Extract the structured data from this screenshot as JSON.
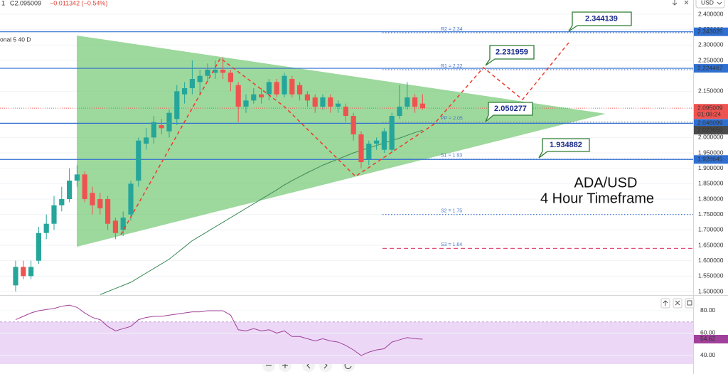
{
  "chart_data": {
    "type": "candlestick",
    "header": [
      "1",
      "C2.095009",
      "−0.011342 (−0.54%)"
    ],
    "indicator_label": "onal 5 40 D",
    "currency": "USD",
    "title": "ADA/USD",
    "subtitle": "4 Hour Timeframe",
    "up_color": "#26a69a",
    "down_color": "#ef5350",
    "ylim": [
      1.4885,
      2.4462
    ],
    "yticks": [
      {
        "value": 2.4,
        "label": "2.400000"
      },
      {
        "value": 2.35,
        "label": "2.350000"
      },
      {
        "value": 2.3,
        "label": "2.300000"
      },
      {
        "value": 2.25,
        "label": "2.250000"
      },
      {
        "value": 2.15,
        "label": "2.150000"
      },
      {
        "value": 2.0,
        "label": "2.000000"
      },
      {
        "value": 1.95,
        "label": "1.950000"
      },
      {
        "value": 1.9,
        "label": "1.900000"
      },
      {
        "value": 1.85,
        "label": "1.850000"
      },
      {
        "value": 1.8,
        "label": "1.800000"
      },
      {
        "value": 1.75,
        "label": "1.750000"
      },
      {
        "value": 1.7,
        "label": "1.700000"
      },
      {
        "value": 1.65,
        "label": "1.650000"
      },
      {
        "value": 1.6,
        "label": "1.600000"
      },
      {
        "value": 1.55,
        "label": "1.550000"
      },
      {
        "value": 1.5,
        "label": "1.500000"
      }
    ],
    "grid": true,
    "open": [
      1.52,
      1.58,
      1.55,
      1.6,
      1.69,
      1.72,
      1.78,
      1.8,
      1.86,
      1.88,
      1.82,
      1.8,
      1.8,
      1.73,
      1.7,
      1.75,
      1.86,
      1.98,
      2.0,
      2.04,
      2.02,
      2.06,
      2.14,
      2.16,
      2.18,
      2.2,
      2.21,
      2.22,
      2.21,
      2.17,
      2.1,
      2.12,
      2.14,
      2.14,
      2.18,
      2.14,
      2.19,
      2.17,
      2.14,
      2.13,
      2.1,
      2.13,
      2.1,
      2.1,
      2.07,
      2.01,
      1.93,
      1.98,
      1.96,
      1.96,
      2.07,
      2.1,
      2.13,
      2.11
    ],
    "high": [
      1.6,
      1.6,
      1.6,
      1.71,
      1.75,
      1.81,
      1.84,
      1.9,
      1.91,
      1.89,
      1.84,
      1.82,
      1.81,
      1.74,
      1.76,
      1.86,
      2.0,
      2.03,
      2.07,
      2.06,
      2.09,
      2.17,
      2.18,
      2.25,
      2.22,
      2.24,
      2.25,
      2.26,
      2.22,
      2.18,
      2.14,
      2.16,
      2.16,
      2.19,
      2.19,
      2.21,
      2.2,
      2.18,
      2.15,
      2.14,
      2.14,
      2.14,
      2.12,
      2.11,
      2.08,
      2.02,
      1.99,
      2.0,
      2.03,
      2.08,
      2.17,
      2.18,
      2.14,
      2.14
    ],
    "low": [
      1.5,
      1.54,
      1.54,
      1.59,
      1.67,
      1.7,
      1.76,
      1.79,
      1.84,
      1.79,
      1.75,
      1.75,
      1.7,
      1.67,
      1.68,
      1.73,
      1.84,
      1.96,
      1.98,
      2.01,
      2.0,
      2.04,
      2.11,
      2.14,
      2.14,
      2.18,
      2.19,
      2.19,
      2.15,
      2.05,
      2.08,
      2.11,
      2.11,
      2.12,
      2.13,
      2.13,
      2.13,
      2.12,
      2.1,
      2.08,
      2.09,
      2.08,
      2.08,
      2.05,
      1.99,
      1.9,
      1.91,
      1.96,
      1.95,
      1.95,
      2.06,
      2.09,
      2.08,
      2.09
    ],
    "close": [
      1.58,
      1.55,
      1.58,
      1.69,
      1.72,
      1.78,
      1.8,
      1.86,
      1.88,
      1.8,
      1.78,
      1.77,
      1.72,
      1.69,
      1.74,
      1.85,
      1.99,
      2.0,
      2.05,
      2.03,
      2.08,
      2.15,
      2.16,
      2.19,
      2.2,
      2.22,
      2.22,
      2.21,
      2.18,
      2.1,
      2.12,
      2.14,
      2.13,
      2.18,
      2.14,
      2.2,
      2.14,
      2.14,
      2.12,
      2.1,
      2.13,
      2.1,
      2.11,
      2.07,
      2.01,
      1.92,
      1.98,
      1.99,
      2.02,
      2.07,
      2.1,
      2.13,
      2.1,
      2.095009
    ],
    "ma": {
      "color": "#3d8b5a",
      "values": [
        null,
        null,
        null,
        null,
        null,
        null,
        null,
        null,
        null,
        null,
        null,
        1.49,
        1.5,
        1.51,
        1.52,
        1.53,
        1.545,
        1.56,
        1.575,
        1.59,
        1.605,
        1.625,
        1.645,
        1.665,
        1.68,
        1.695,
        1.71,
        1.725,
        1.74,
        1.755,
        1.77,
        1.785,
        1.8,
        1.815,
        1.83,
        1.846,
        1.86,
        1.873,
        1.886,
        1.898,
        1.91,
        1.92,
        1.93,
        1.94,
        1.95,
        1.958,
        1.966,
        1.974,
        1.982,
        1.99,
        1.998,
        2.007,
        2.016,
        2.023659
      ]
    },
    "countdown": "01:08:24",
    "levels": [
      {
        "value": 2.343025,
        "color": "#2f6fd0"
      },
      {
        "value": 2.224467,
        "color": "#2f6fd0"
      },
      {
        "value": 2.046099,
        "color": "#2f6fd0"
      },
      {
        "value": 1.928645,
        "color": "#2f6fd0"
      }
    ],
    "pivots": [
      {
        "label": "R2 = 2.34",
        "value": 2.34,
        "color": "#4a78c8"
      },
      {
        "label": "R1 = 2.22",
        "value": 2.22,
        "color": "#4a78c8"
      },
      {
        "label": "PP = 2.05",
        "value": 2.05,
        "color": "#888888"
      },
      {
        "label": "S1 = 1.93",
        "value": 1.93,
        "color": "#4a78c8"
      },
      {
        "label": "S2 = 1.75",
        "value": 1.75,
        "color": "#3a6fd0"
      },
      {
        "label": "S3 = 1.64",
        "value": 1.64,
        "color": "#e0507a"
      }
    ],
    "annotations": [
      2.344139,
      2.231959,
      2.050277,
      1.934882
    ],
    "rsi": {
      "color": "#a0409a",
      "band": [
        30,
        70
      ],
      "band_color": "#ecd8f6",
      "ylim": [
        32.38,
        92.06
      ],
      "yticks": [
        {
          "value": 80,
          "label": "80.00"
        },
        {
          "value": 60,
          "label": "60.00"
        },
        {
          "value": 40,
          "label": "40.00"
        }
      ],
      "values": [
        72,
        75,
        78,
        80,
        81,
        82,
        84,
        85,
        83,
        78,
        74,
        72,
        66,
        62,
        64,
        66,
        72,
        74,
        75,
        75,
        76,
        77,
        78,
        79,
        79,
        80,
        80,
        80,
        76,
        63,
        62,
        64,
        62,
        63,
        60,
        62,
        57,
        57,
        55,
        53,
        55,
        53,
        52,
        49,
        45,
        40,
        43,
        45,
        46,
        52,
        54,
        56,
        55,
        54.62
      ]
    }
  }
}
